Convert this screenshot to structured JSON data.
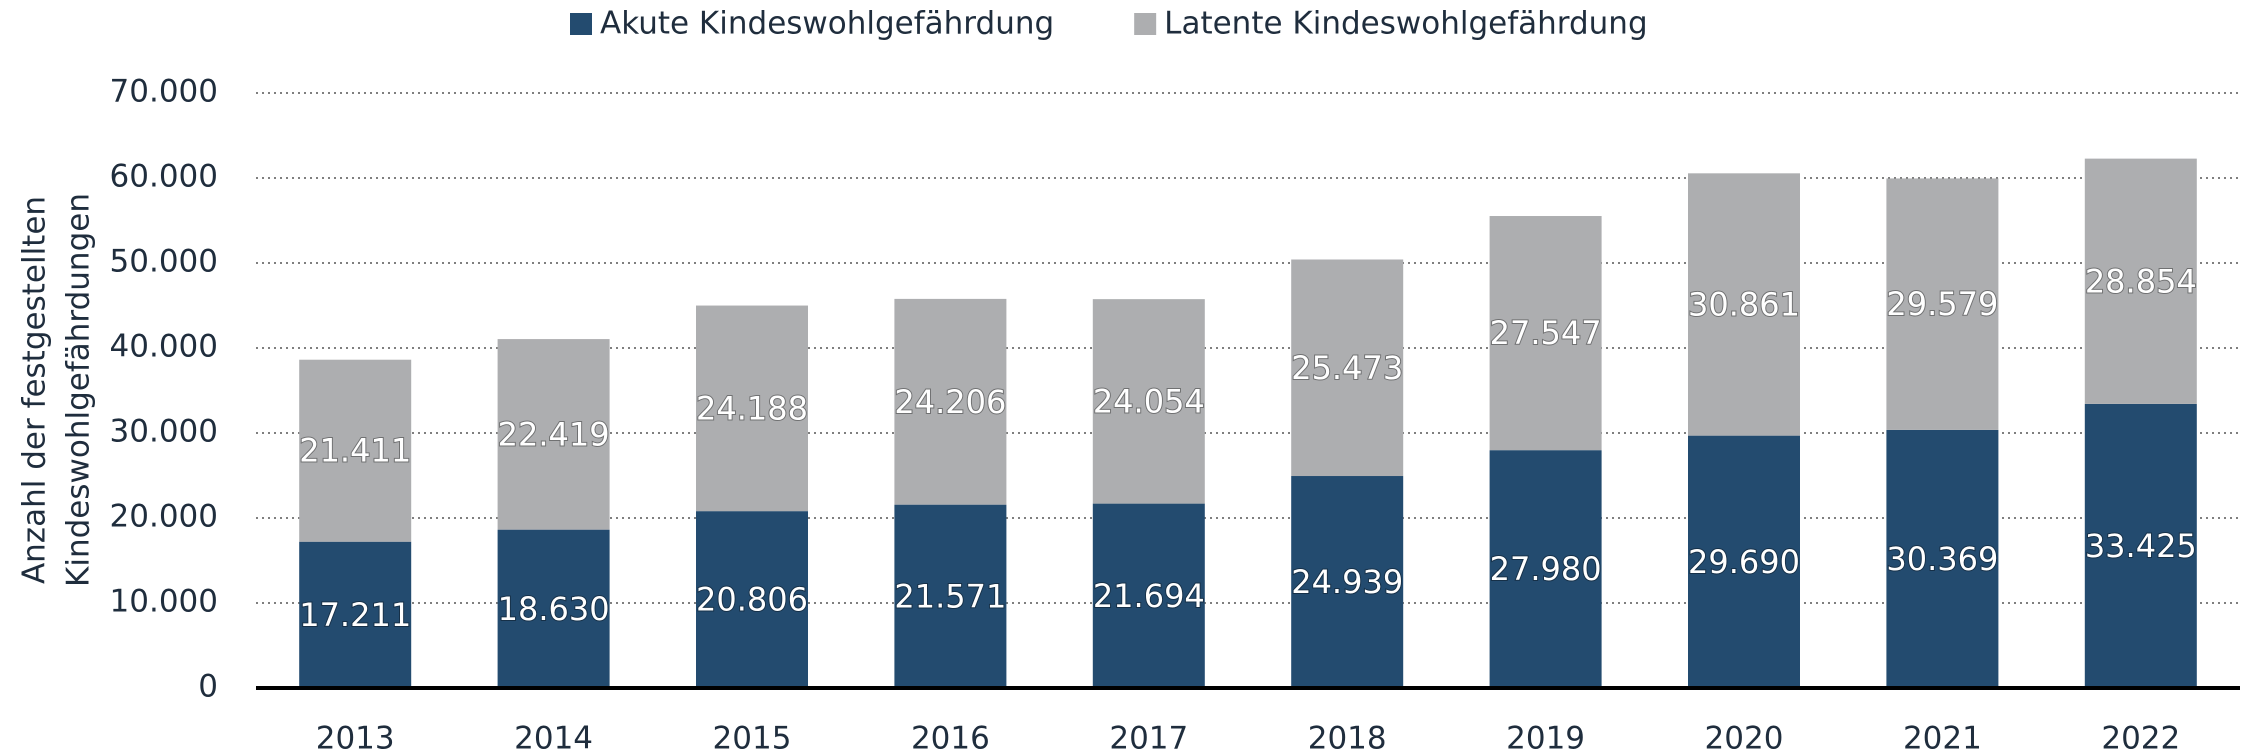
{
  "chart_data": {
    "type": "stacked_bar",
    "ylabel": [
      "Anzahl der festgestellten",
      "Kindeswohlgefährdungen"
    ],
    "categories": [
      "2013",
      "2014",
      "2015",
      "2016",
      "2017",
      "2018",
      "2019",
      "2020",
      "2021",
      "2022"
    ],
    "series": [
      {
        "name": "Akute Kindeswohlgefährdung",
        "color": "#234b6f",
        "values": [
          17211,
          18630,
          20806,
          21571,
          21694,
          24939,
          27980,
          29690,
          30369,
          33425
        ],
        "value_labels": [
          "17.211",
          "18.630",
          "20.806",
          "21.571",
          "21.694",
          "24.939",
          "27.980",
          "29.690",
          "30.369",
          "33.425"
        ]
      },
      {
        "name": "Latente Kindeswohlgefährdung",
        "color": "#adaeb0",
        "values": [
          21411,
          22419,
          24188,
          24206,
          24054,
          25473,
          27547,
          30861,
          29579,
          28854
        ],
        "value_labels": [
          "21.411",
          "22.419",
          "24.188",
          "24.206",
          "24.054",
          "25.473",
          "27.547",
          "30.861",
          "29.579",
          "28.854"
        ]
      }
    ],
    "ylim": [
      0,
      70000
    ],
    "yticks": [
      0,
      {
        "value": 10000,
        "label": "10.000"
      },
      {
        "value": 20000,
        "label": "20.000"
      },
      {
        "value": 30000,
        "label": "30.000"
      },
      {
        "value": 40000,
        "label": "40.000"
      },
      {
        "value": 50000,
        "label": "50.000"
      },
      {
        "value": 60000,
        "label": "60.000"
      },
      {
        "value": 70000,
        "label": "70.000"
      }
    ],
    "grid": true,
    "legend": "top"
  }
}
